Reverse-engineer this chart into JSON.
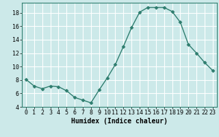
{
  "x": [
    0,
    1,
    2,
    3,
    4,
    5,
    6,
    7,
    8,
    9,
    10,
    11,
    12,
    13,
    14,
    15,
    16,
    17,
    18,
    19,
    20,
    21,
    22,
    23
  ],
  "y": [
    8.1,
    7.1,
    6.7,
    7.1,
    7.0,
    6.4,
    5.4,
    5.0,
    4.6,
    6.5,
    8.3,
    10.3,
    13.0,
    15.8,
    18.1,
    18.8,
    18.8,
    18.8,
    18.2,
    16.6,
    13.3,
    12.0,
    10.6,
    9.4
  ],
  "line_color": "#2e7d6e",
  "marker": "D",
  "markersize": 2.5,
  "linewidth": 1.0,
  "xlabel": "Humidex (Indice chaleur)",
  "xlim": [
    -0.5,
    23.5
  ],
  "ylim": [
    4,
    19.5
  ],
  "yticks": [
    4,
    6,
    8,
    10,
    12,
    14,
    16,
    18
  ],
  "xticks": [
    0,
    1,
    2,
    3,
    4,
    5,
    6,
    7,
    8,
    9,
    10,
    11,
    12,
    13,
    14,
    15,
    16,
    17,
    18,
    19,
    20,
    21,
    22,
    23
  ],
  "background_color": "#cce9e9",
  "grid_color": "#ffffff",
  "tick_labelsize": 6,
  "xlabel_fontsize": 7
}
